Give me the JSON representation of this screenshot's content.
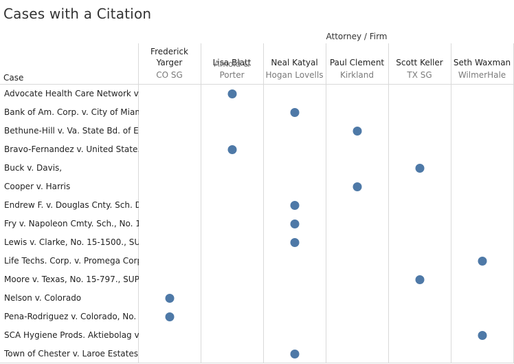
{
  "title": "Cases with a Citation",
  "chart_data": {
    "type": "scatter",
    "title": "Cases with a Citation",
    "column_group_label": "Attorney / Firm",
    "row_header": "Case",
    "columns": [
      {
        "attorney": "Frederick Yarger",
        "firm": "CO SG"
      },
      {
        "attorney": "Lisa Blatt",
        "firm": "Arnold & Porter"
      },
      {
        "attorney": "Neal Katyal",
        "firm": "Hogan Lovells"
      },
      {
        "attorney": "Paul Clement",
        "firm": "Kirkland"
      },
      {
        "attorney": "Scott Keller",
        "firm": "TX SG"
      },
      {
        "attorney": "Seth Waxman",
        "firm": "WilmerHale"
      }
    ],
    "rows": [
      "Advocate Health Care Network v...",
      "Bank of Am. Corp. v. City of Miam..",
      "Bethune-Hill v. Va. State Bd. of El..",
      "Bravo-Fernandez v. United State..",
      "Buck v. Davis,",
      "Cooper v. Harris",
      "Endrew F. v. Douglas Cnty. Sch. D..",
      "Fry v. Napoleon Cmty. Sch., No. 1..",
      "Lewis v. Clarke, No. 15-1500., SU..",
      "Life Techs. Corp. v. Promega Corp..",
      "Moore v. Texas, No. 15-797., SUP...",
      "Nelson v. Colorado",
      "Pena-Rodriguez v. Colorado, No. ...",
      "SCA Hygiene Prods. Aktiebolag v...",
      "Town of Chester v. Laroe Estates..."
    ],
    "points": [
      {
        "row": "Advocate Health Care Network v...",
        "attorney": "Lisa Blatt"
      },
      {
        "row": "Bank of Am. Corp. v. City of Miam..",
        "attorney": "Neal Katyal"
      },
      {
        "row": "Bethune-Hill v. Va. State Bd. of El..",
        "attorney": "Paul Clement"
      },
      {
        "row": "Bravo-Fernandez v. United State..",
        "attorney": "Lisa Blatt"
      },
      {
        "row": "Buck v. Davis,",
        "attorney": "Scott Keller"
      },
      {
        "row": "Cooper v. Harris",
        "attorney": "Paul Clement"
      },
      {
        "row": "Endrew F. v. Douglas Cnty. Sch. D..",
        "attorney": "Neal Katyal"
      },
      {
        "row": "Fry v. Napoleon Cmty. Sch., No. 1..",
        "attorney": "Neal Katyal"
      },
      {
        "row": "Lewis v. Clarke, No. 15-1500., SU..",
        "attorney": "Neal Katyal"
      },
      {
        "row": "Life Techs. Corp. v. Promega Corp..",
        "attorney": "Seth Waxman"
      },
      {
        "row": "Moore v. Texas, No. 15-797., SUP...",
        "attorney": "Scott Keller"
      },
      {
        "row": "Nelson v. Colorado",
        "attorney": "Frederick Yarger"
      },
      {
        "row": "Pena-Rodriguez v. Colorado, No. ...",
        "attorney": "Frederick Yarger"
      },
      {
        "row": "SCA Hygiene Prods. Aktiebolag v...",
        "attorney": "Seth Waxman"
      },
      {
        "row": "Town of Chester v. Laroe Estates...",
        "attorney": "Neal Katyal"
      }
    ],
    "grid": true,
    "legend": "none"
  },
  "colors": {
    "mark": "#4e79a7",
    "divider": "#d9d9d9",
    "text": "#333333",
    "firm_text": "#7a7a7a"
  }
}
